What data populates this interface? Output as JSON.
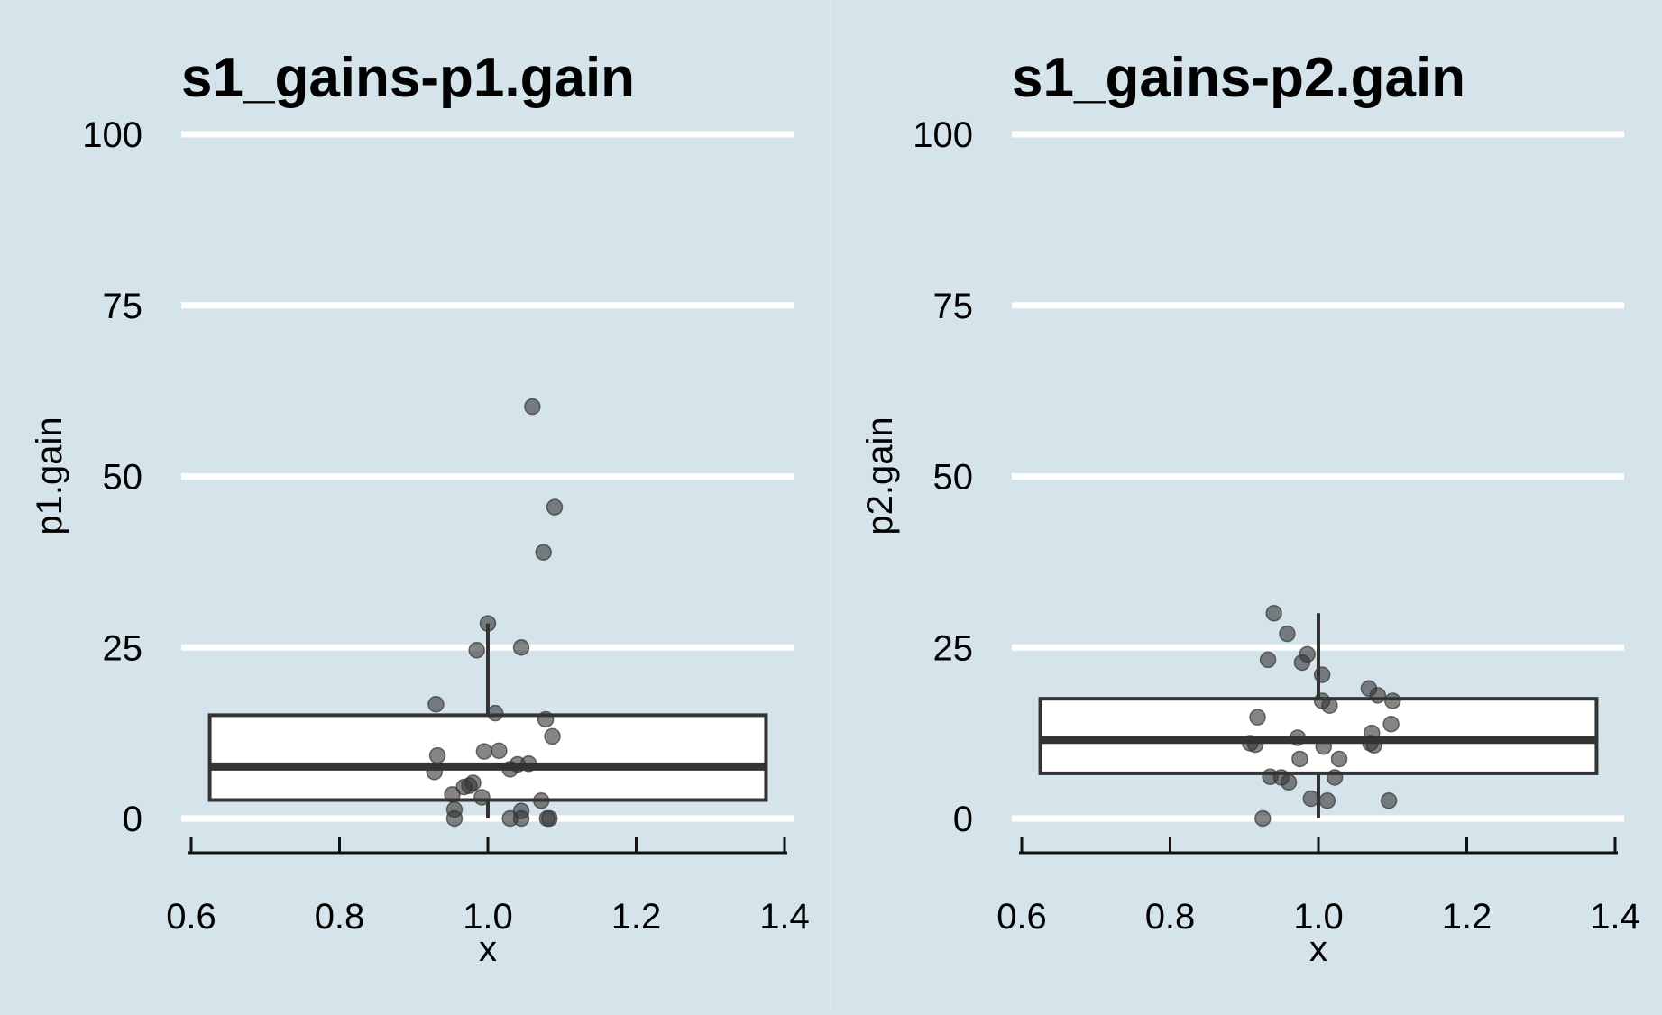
{
  "colors": {
    "background": "#d5e4eb",
    "grid": "#ffffff",
    "box_fill": "#ffffff",
    "box_edge": "#333333",
    "point": "#333333"
  },
  "chart_data": [
    {
      "type": "box",
      "title": "s1_gains-p1.gain",
      "xlabel": "x",
      "ylabel": "p1.gain",
      "xlim": [
        0.6,
        1.4
      ],
      "ylim": [
        -5,
        105
      ],
      "xticks": [
        "0.6",
        "0.8",
        "1.0",
        "1.2",
        "1.4"
      ],
      "yticks": [
        "0",
        "25",
        "50",
        "75",
        "100"
      ],
      "grid": "horizontal",
      "box": {
        "position": 1.0,
        "width": 0.75,
        "q1": 2.7,
        "median": 7.6,
        "q3": 15.1,
        "whisker_low": 0,
        "whisker_high": 28.5
      },
      "points": [
        {
          "x": 1.06,
          "y": 60.2
        },
        {
          "x": 1.09,
          "y": 45.5
        },
        {
          "x": 1.075,
          "y": 38.9
        },
        {
          "x": 1.0,
          "y": 28.5
        },
        {
          "x": 0.985,
          "y": 24.6
        },
        {
          "x": 1.045,
          "y": 25.0
        },
        {
          "x": 0.93,
          "y": 16.7
        },
        {
          "x": 1.01,
          "y": 15.4
        },
        {
          "x": 1.078,
          "y": 14.5
        },
        {
          "x": 1.087,
          "y": 12.0
        },
        {
          "x": 0.995,
          "y": 9.8
        },
        {
          "x": 1.015,
          "y": 9.9
        },
        {
          "x": 0.932,
          "y": 9.2
        },
        {
          "x": 1.04,
          "y": 7.9
        },
        {
          "x": 1.055,
          "y": 8.0
        },
        {
          "x": 1.03,
          "y": 7.2
        },
        {
          "x": 0.928,
          "y": 6.8
        },
        {
          "x": 0.98,
          "y": 5.2
        },
        {
          "x": 0.975,
          "y": 4.8
        },
        {
          "x": 0.968,
          "y": 4.6
        },
        {
          "x": 0.952,
          "y": 3.5
        },
        {
          "x": 0.992,
          "y": 3.1
        },
        {
          "x": 1.072,
          "y": 2.6
        },
        {
          "x": 0.955,
          "y": 1.3
        },
        {
          "x": 1.045,
          "y": 1.1
        },
        {
          "x": 0.955,
          "y": 0.0
        },
        {
          "x": 1.03,
          "y": 0.0
        },
        {
          "x": 1.045,
          "y": 0.0
        },
        {
          "x": 1.08,
          "y": 0.0
        },
        {
          "x": 1.083,
          "y": 0.0
        }
      ]
    },
    {
      "type": "box",
      "title": "s1_gains-p2.gain",
      "xlabel": "x",
      "ylabel": "p2.gain",
      "xlim": [
        0.6,
        1.4
      ],
      "ylim": [
        -5,
        105
      ],
      "xticks": [
        "0.6",
        "0.8",
        "1.0",
        "1.2",
        "1.4"
      ],
      "yticks": [
        "0",
        "25",
        "50",
        "75",
        "100"
      ],
      "grid": "horizontal",
      "box": {
        "position": 1.0,
        "width": 0.75,
        "q1": 6.6,
        "median": 11.5,
        "q3": 17.5,
        "whisker_low": 0,
        "whisker_high": 30.0
      },
      "points": [
        {
          "x": 0.94,
          "y": 30.0
        },
        {
          "x": 0.958,
          "y": 27.0
        },
        {
          "x": 0.985,
          "y": 24.0
        },
        {
          "x": 0.932,
          "y": 23.2
        },
        {
          "x": 0.978,
          "y": 22.8
        },
        {
          "x": 1.005,
          "y": 21.0
        },
        {
          "x": 1.068,
          "y": 19.0
        },
        {
          "x": 1.08,
          "y": 18.0
        },
        {
          "x": 1.1,
          "y": 17.2
        },
        {
          "x": 1.005,
          "y": 17.2
        },
        {
          "x": 1.015,
          "y": 16.5
        },
        {
          "x": 0.918,
          "y": 14.8
        },
        {
          "x": 1.098,
          "y": 13.8
        },
        {
          "x": 1.072,
          "y": 12.5
        },
        {
          "x": 0.972,
          "y": 11.8
        },
        {
          "x": 0.908,
          "y": 11.0
        },
        {
          "x": 0.915,
          "y": 10.8
        },
        {
          "x": 1.07,
          "y": 11.0
        },
        {
          "x": 1.075,
          "y": 10.7
        },
        {
          "x": 1.007,
          "y": 10.5
        },
        {
          "x": 1.028,
          "y": 8.7
        },
        {
          "x": 0.975,
          "y": 8.7
        },
        {
          "x": 0.935,
          "y": 6.1
        },
        {
          "x": 0.95,
          "y": 6.0
        },
        {
          "x": 1.022,
          "y": 6.0
        },
        {
          "x": 0.96,
          "y": 5.3
        },
        {
          "x": 0.99,
          "y": 2.9
        },
        {
          "x": 1.012,
          "y": 2.6
        },
        {
          "x": 1.095,
          "y": 2.6
        },
        {
          "x": 0.925,
          "y": 0.0
        }
      ]
    }
  ]
}
